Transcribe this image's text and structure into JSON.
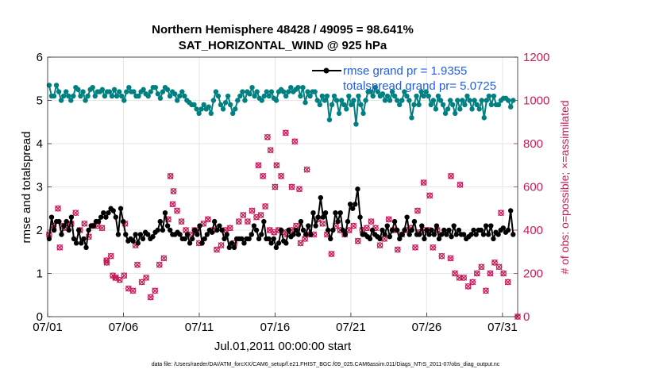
{
  "chart_data": {
    "type": "line",
    "title": "Northern Hemisphere 48428 / 49095 = 98.641%",
    "subtitle": "SAT_HORIZONTAL_WIND @ 925 hPa",
    "xlabel": "Jul.01,2011 00:00:00 start",
    "ylabel": "rmse and totalspread",
    "y2label": "# of obs: o=possible; ×=assimilated",
    "footer": "data file: /Users/raeder/DAI/ATM_forcXX/CAM6_setup/f.e21.FHIST_BGC.f09_025.CAM6assim.011/Diags_NTrS_2011-07/obs_diag_output.nc",
    "x_ticks": [
      "07/01",
      "07/06",
      "07/11",
      "07/16",
      "07/21",
      "07/26",
      "07/31"
    ],
    "xlim_days": [
      1,
      32
    ],
    "ylim": [
      0,
      6
    ],
    "y_ticks": [
      "0",
      "1",
      "2",
      "3",
      "4",
      "5",
      "6"
    ],
    "y2lim": [
      0,
      1200
    ],
    "y2_ticks": [
      "0",
      "200",
      "400",
      "600",
      "800",
      "1000",
      "1200"
    ],
    "grid": true,
    "legend": {
      "placement": "top-right",
      "entries": [
        "rmse grand pr = 1.9355",
        "totalspread grand pr= 5.0725"
      ]
    },
    "colors": {
      "rmse": "#000000",
      "totalspread": "#008080",
      "obs": "#c8195a",
      "legend_text": "#1f5fe6"
    },
    "series": [
      {
        "name": "rmse grand pr = 1.9355",
        "axis": "left",
        "values": [
          1.8,
          2.3,
          2.0,
          2.2,
          2.2,
          1.9,
          2.1,
          2.2,
          2.0,
          2.3,
          1.8,
          1.7,
          2.0,
          1.7,
          1.8,
          1.6,
          2.0,
          2.1,
          2.1,
          2.2,
          2.2,
          2.3,
          2.4,
          2.3,
          2.4,
          2.5,
          2.45,
          2.3,
          1.9,
          2.5,
          2.2,
          1.9,
          1.75,
          1.8,
          1.75,
          1.9,
          1.7,
          1.9,
          1.8,
          1.95,
          1.9,
          1.8,
          1.85,
          1.95,
          2.0,
          2.2,
          2.0,
          2.4,
          2.1,
          2.0,
          1.9,
          1.9,
          1.95,
          1.9,
          1.8,
          1.8,
          1.9,
          1.7,
          1.8,
          2.0,
          1.9,
          2.1,
          1.7,
          1.8,
          1.9,
          2.0,
          1.95,
          2.2,
          2.0,
          2.1,
          2.0,
          1.8,
          1.9,
          1.6,
          1.7,
          1.6,
          1.8,
          1.8,
          1.8,
          1.7,
          1.8,
          1.8,
          1.9,
          2.1,
          2.0,
          1.8,
          1.9,
          2.2,
          1.8,
          1.8,
          1.7,
          1.8,
          1.6,
          1.7,
          2.0,
          1.75,
          1.7,
          2.0,
          1.85,
          1.9,
          2.0,
          1.9,
          2.2,
          2.0,
          1.9,
          2.1,
          1.9,
          2.4,
          2.1,
          2.3,
          2.75,
          2.3,
          2.4,
          2.0,
          1.8,
          2.0,
          2.4,
          2.2,
          2.4,
          2.0,
          1.9,
          2.2,
          2.6,
          2.5,
          2.6,
          2.95,
          2.3,
          1.9,
          1.9,
          1.85,
          1.8,
          2.0,
          1.9,
          1.85,
          1.8,
          2.0,
          1.9,
          2.1,
          1.85,
          2.0,
          2.2,
          2.0,
          1.8,
          1.9,
          2.0,
          2.3,
          1.9,
          2.0,
          2.2,
          1.9,
          1.9,
          2.1,
          1.8,
          2.0,
          1.9,
          2.0,
          1.9,
          2.1,
          1.8,
          1.9,
          2.0,
          1.9,
          2.0,
          1.85,
          2.1,
          1.9,
          2.0,
          1.9,
          1.9,
          1.8,
          1.85,
          1.9,
          2.0,
          1.9,
          2.0,
          2.0,
          1.9,
          2.1,
          1.9,
          2.1,
          1.8,
          1.95,
          1.9,
          2.0,
          2.05,
          1.95,
          2.0,
          2.45,
          1.9
        ]
      },
      {
        "name": "totalspread grand pr= 5.0725",
        "axis": "left",
        "values": [
          5.35,
          5.1,
          5.1,
          5.35,
          5.2,
          5.0,
          5.1,
          5.2,
          5.1,
          5.0,
          5.1,
          5.3,
          5.25,
          5.1,
          5.2,
          5.0,
          5.1,
          5.25,
          5.3,
          5.1,
          5.2,
          5.2,
          5.25,
          5.1,
          5.2,
          5.2,
          5.1,
          5.25,
          5.1,
          5.2,
          5.1,
          5.0,
          5.2,
          5.3,
          5.2,
          5.2,
          5.1,
          5.1,
          5.2,
          5.25,
          5.15,
          5.1,
          5.2,
          5.3,
          5.3,
          5.15,
          5.05,
          5.2,
          5.3,
          5.25,
          5.1,
          5.2,
          5.15,
          5.0,
          5.1,
          5.2,
          5.1,
          5.0,
          4.95,
          4.9,
          4.9,
          4.8,
          4.7,
          4.8,
          4.9,
          4.8,
          4.85,
          4.7,
          5.0,
          5.2,
          5.1,
          4.9,
          4.8,
          4.95,
          5.1,
          4.9,
          4.7,
          4.8,
          5.0,
          5.1,
          5.2,
          5.0,
          5.2,
          5.15,
          5.3,
          5.1,
          5.2,
          5.05,
          5.0,
          5.1,
          5.2,
          5.1,
          5.2,
          5.05,
          5.0,
          5.2,
          5.25,
          5.2,
          5.1,
          5.2,
          5.3,
          5.2,
          5.25,
          5.3,
          5.1,
          5.3,
          4.95,
          5.2,
          5.1,
          5.2,
          5.2,
          5.0,
          4.9,
          5.1,
          5.0,
          5.1,
          4.55,
          4.9,
          5.1,
          5.0,
          4.7,
          5.0,
          4.9,
          4.8,
          5.1,
          4.9,
          5.0,
          4.45,
          5.1,
          4.9,
          4.7,
          5.0,
          5.2,
          5.2,
          5.1,
          5.3,
          5.2,
          5.1,
          5.15,
          5.0,
          5.1,
          5.0,
          5.2,
          5.1,
          5.0,
          4.9,
          5.0,
          5.2,
          5.1,
          5.0,
          4.6,
          4.9,
          5.1,
          4.9,
          5.2,
          5.1,
          5.2,
          5.1,
          4.9,
          5.0,
          4.8,
          5.1,
          5.0,
          4.9,
          4.7,
          4.8,
          5.0,
          4.9,
          4.7,
          5.0,
          4.8,
          5.0,
          4.9,
          5.1,
          5.0,
          4.8,
          5.0,
          4.9,
          4.8,
          5.0,
          4.6,
          5.0,
          5.1,
          4.9,
          5.1,
          4.9,
          4.9,
          5.0,
          5.05,
          5.05,
          5.0,
          4.85,
          5.0
        ]
      },
      {
        "name": "# of obs: o=possible; ×=assimilated",
        "axis": "right",
        "values": [
          380,
          470,
          420,
          520,
          500,
          470,
          420,
          380,
          410,
          390,
          430,
          410,
          480,
          420,
          400,
          380,
          430,
          400,
          370,
          460,
          420,
          440,
          420,
          460,
          410,
          250,
          260,
          270,
          280,
          190,
          180,
          190,
          170,
          200,
          190,
          160,
          130,
          110,
          120,
          180,
          240,
          330,
          160,
          130,
          180,
          110,
          90,
          140,
          120,
          230,
          240,
          310,
          270,
          430,
          450,
          460,
          520,
          480,
          490,
          470,
          440,
          410,
          400,
          420,
          380,
          330,
          400,
          320,
          340,
          360,
          430,
          420,
          450,
          460,
          400,
          410,
          310,
          380,
          330,
          360,
          400,
          420,
          410,
          330,
          340,
          430,
          440,
          460,
          470,
          520,
          440,
          470,
          490,
          480,
          460,
          420,
          470,
          420,
          510,
          430,
          400,
          410,
          390,
          380,
          400,
          380,
          390,
          360,
          380,
          360,
          400,
          440,
          420,
          370,
          340,
          400,
          360,
          420,
          380,
          340,
          380,
          410,
          450,
          470,
          430,
          400,
          380,
          330,
          290,
          380,
          420,
          420,
          400,
          400,
          380,
          420,
          400,
          450,
          420,
          400,
          350,
          380,
          400,
          390,
          410,
          420,
          440,
          400,
          410,
          350,
          330,
          320,
          360,
          380,
          450,
          380,
          400,
          360,
          310,
          340,
          380,
          360,
          400,
          420,
          410,
          380,
          320,
          300,
          390,
          360,
          400,
          380,
          400,
          420,
          320,
          310,
          400,
          420,
          280,
          400,
          390,
          300,
          270,
          220,
          200,
          280,
          180,
          170,
          180,
          200,
          140,
          150,
          160,
          180,
          200,
          240,
          230,
          150,
          120,
          130,
          200,
          230,
          250,
          220,
          230,
          220,
          200,
          170,
          160,
          210
        ]
      }
    ],
    "obs_extra_points": [
      {
        "x": 9.1,
        "y": 650
      },
      {
        "x": 9.3,
        "y": 580
      },
      {
        "x": 15.5,
        "y": 830
      },
      {
        "x": 15.7,
        "y": 770
      },
      {
        "x": 16.7,
        "y": 850
      },
      {
        "x": 17.3,
        "y": 810
      },
      {
        "x": 18.1,
        "y": 680
      },
      {
        "x": 14.9,
        "y": 700
      },
      {
        "x": 16.1,
        "y": 700
      },
      {
        "x": 16.4,
        "y": 650
      },
      {
        "x": 15.2,
        "y": 650
      },
      {
        "x": 16.0,
        "y": 600
      },
      {
        "x": 17.1,
        "y": 600
      },
      {
        "x": 17.6,
        "y": 590
      },
      {
        "x": 25.8,
        "y": 620
      },
      {
        "x": 27.6,
        "y": 650
      },
      {
        "x": 28.2,
        "y": 610
      },
      {
        "x": 30.9,
        "y": 480
      },
      {
        "x": 26.2,
        "y": 560
      },
      {
        "x": 25.4,
        "y": 490
      },
      {
        "x": 6.8,
        "y": 330
      },
      {
        "x": 6.1,
        "y": 430
      },
      {
        "x": 5.5,
        "y": 180
      },
      {
        "x": 5.3,
        "y": 190
      },
      {
        "x": 4.9,
        "y": 250
      },
      {
        "x": 1.8,
        "y": 320
      },
      {
        "x": 32.0,
        "y": 0
      }
    ]
  }
}
